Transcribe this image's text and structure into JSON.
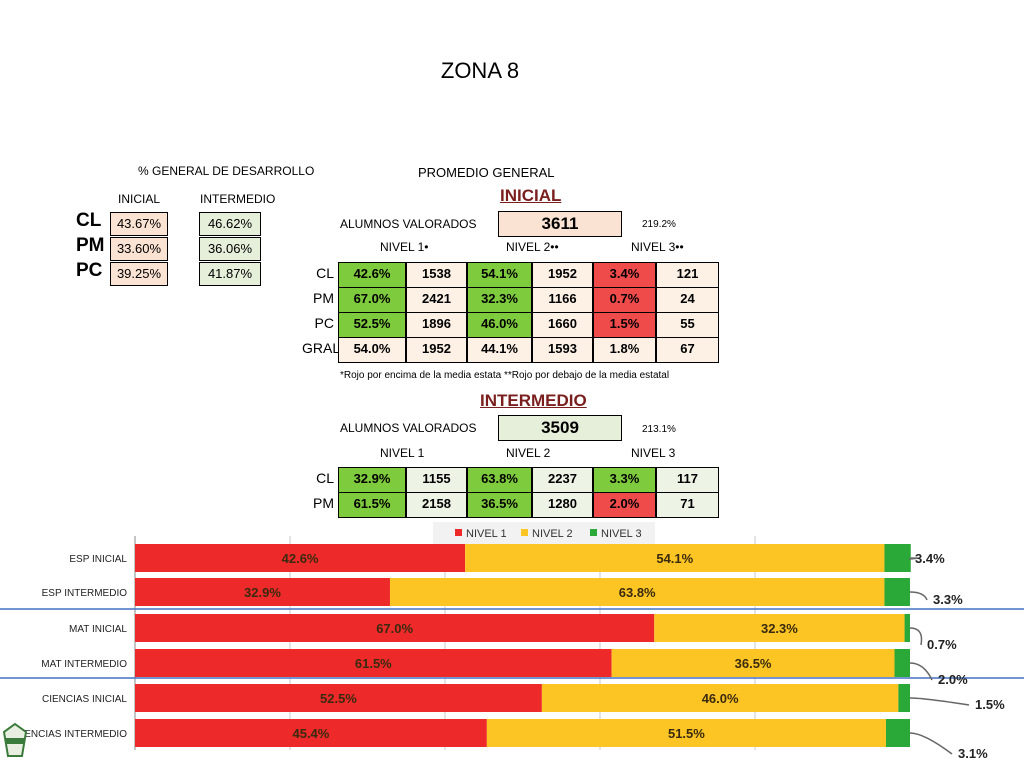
{
  "page_title": "ZONA 8",
  "desarrollo": {
    "heading": "% GENERAL DE DESARROLLO",
    "col_inicial": "INICIAL",
    "col_intermedio": "INTERMEDIO",
    "rows": [
      {
        "label": "CL",
        "inicial": "43.67%",
        "intermedio": "46.62%"
      },
      {
        "label": "PM",
        "inicial": "33.60%",
        "intermedio": "36.06%"
      },
      {
        "label": "PC",
        "inicial": "39.25%",
        "intermedio": "41.87%"
      }
    ]
  },
  "promedio": {
    "heading": "PROMEDIO GENERAL",
    "inicial": {
      "title": "INICIAL",
      "alumnos_label": "ALUMNOS VALORADOS",
      "alumnos_count": "3611",
      "side_pct": "219.2%",
      "nivel_headers": [
        "NIVEL 1•",
        "NIVEL 2••",
        "NIVEL 3••"
      ],
      "rows": [
        {
          "label": "CL",
          "cells": [
            "42.6%",
            "1538",
            "54.1%",
            "1952",
            "3.4%",
            "121"
          ]
        },
        {
          "label": "PM",
          "cells": [
            "67.0%",
            "2421",
            "32.3%",
            "1166",
            "0.7%",
            "24"
          ]
        },
        {
          "label": "PC",
          "cells": [
            "52.5%",
            "1896",
            "46.0%",
            "1660",
            "1.5%",
            "55"
          ]
        },
        {
          "label": "GRAL",
          "cells": [
            "54.0%",
            "1952",
            "44.1%",
            "1593",
            "1.8%",
            "67"
          ]
        }
      ],
      "footnote": "*Rojo por encima de la media estata **Rojo por debajo de  la media estatal"
    },
    "intermedio": {
      "title": "INTERMEDIO",
      "alumnos_label": "ALUMNOS VALORADOS",
      "alumnos_count": "3509",
      "side_pct": "213.1%",
      "nivel_headers": [
        "NIVEL 1",
        "NIVEL 2",
        "NIVEL 3"
      ],
      "rows": [
        {
          "label": "CL",
          "cells": [
            "32.9%",
            "1155",
            "63.8%",
            "2237",
            "3.3%",
            "117"
          ]
        },
        {
          "label": "PM",
          "cells": [
            "61.5%",
            "2158",
            "36.5%",
            "1280",
            "2.0%",
            "71"
          ]
        }
      ]
    }
  },
  "chart_data": {
    "type": "bar",
    "orientation": "horizontal-stacked-100",
    "categories": [
      "ESP INICIAL",
      "ESP INTERMEDIO",
      "MAT INICIAL",
      "MAT INTERMEDIO",
      "CIENCIAS INICIAL",
      "CIENCIAS INTERMEDIO"
    ],
    "series": [
      {
        "name": "NIVEL 1",
        "color": "#ee2929",
        "values": [
          42.6,
          32.9,
          67.0,
          61.5,
          52.5,
          45.4
        ]
      },
      {
        "name": "NIVEL 2",
        "color": "#fcc524",
        "values": [
          54.1,
          63.8,
          32.3,
          36.5,
          46.0,
          51.5
        ]
      },
      {
        "name": "NIVEL 3",
        "color": "#2aa838",
        "values": [
          3.4,
          3.3,
          0.7,
          2.0,
          1.5,
          3.1
        ]
      }
    ],
    "value_labels": [
      [
        "42.6%",
        "54.1%",
        "3.4%"
      ],
      [
        "32.9%",
        "63.8%",
        "3.3%"
      ],
      [
        "67.0%",
        "32.3%",
        "0.7%"
      ],
      [
        "61.5%",
        "36.5%",
        "2.0%"
      ],
      [
        "52.5%",
        "46.0%",
        "1.5%"
      ],
      [
        "45.4%",
        "51.5%",
        "3.1%"
      ]
    ],
    "legend_position": "top",
    "grid": true
  }
}
